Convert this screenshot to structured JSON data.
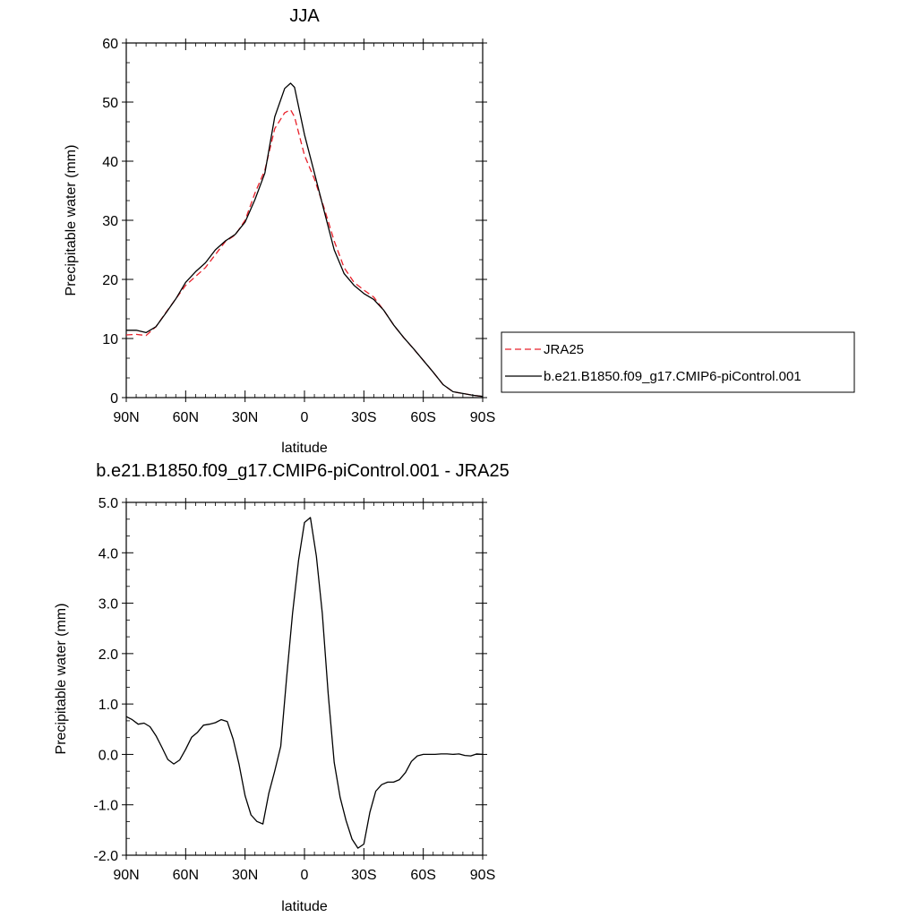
{
  "chart_data": [
    {
      "type": "line",
      "title": "JJA",
      "xlabel": "latitude",
      "ylabel": "Precipitable water (mm)",
      "xlim": [
        90,
        -90
      ],
      "ylim": [
        0,
        60
      ],
      "xticks": [
        90,
        60,
        30,
        0,
        -30,
        -60,
        -90
      ],
      "xtick_labels": [
        "90N",
        "60N",
        "30N",
        "0",
        "30S",
        "60S",
        "90S"
      ],
      "yticks": [
        0,
        10,
        20,
        30,
        40,
        50,
        60
      ],
      "ytick_labels": [
        "0",
        "10",
        "20",
        "30",
        "40",
        "50",
        "60"
      ],
      "legend": "outside-right",
      "series": [
        {
          "name": "JRA25",
          "color": "#e8202a",
          "dash": "dashed",
          "x": [
            90,
            85,
            80,
            75,
            70,
            65,
            60,
            55,
            50,
            45,
            40,
            35,
            30,
            25,
            20,
            15,
            10,
            7,
            5,
            0,
            -5,
            -10,
            -15,
            -20,
            -25,
            -30,
            -35,
            -40,
            -45,
            -50,
            -55,
            -60,
            -65,
            -70,
            -75,
            -80,
            -85,
            -90
          ],
          "y": [
            10.6,
            10.7,
            10.5,
            12.0,
            14.4,
            16.7,
            19.0,
            20.5,
            22.0,
            24.2,
            26.4,
            27.5,
            30.0,
            34.6,
            38.5,
            45.5,
            48.2,
            48.7,
            47.5,
            41.0,
            37.0,
            32.0,
            26.5,
            22.0,
            19.5,
            18.2,
            17.0,
            14.8,
            12.3,
            10.2,
            8.3,
            6.3,
            4.3,
            2.2,
            1.0,
            0.7,
            0.4,
            0.2
          ]
        },
        {
          "name": "b.e21.B1850.f09_g17.CMIP6-piControl.001",
          "color": "#000000",
          "dash": "solid",
          "x": [
            90,
            85,
            80,
            75,
            70,
            65,
            60,
            55,
            50,
            45,
            40,
            35,
            30,
            25,
            20,
            15,
            10,
            7,
            5,
            0,
            -5,
            -10,
            -15,
            -20,
            -25,
            -30,
            -35,
            -40,
            -45,
            -50,
            -55,
            -60,
            -65,
            -70,
            -75,
            -80,
            -85,
            -90
          ],
          "y": [
            11.4,
            11.4,
            11.0,
            12.0,
            14.3,
            16.7,
            19.5,
            21.3,
            22.8,
            25.0,
            26.5,
            27.6,
            29.7,
            33.5,
            38.0,
            47.5,
            52.3,
            53.2,
            52.5,
            44.5,
            38.0,
            31.5,
            25.0,
            21.0,
            19.0,
            17.6,
            16.6,
            14.8,
            12.3,
            10.2,
            8.3,
            6.3,
            4.3,
            2.2,
            1.0,
            0.7,
            0.4,
            0.2
          ]
        }
      ]
    },
    {
      "type": "line",
      "title": "b.e21.B1850.f09_g17.CMIP6-piControl.001 - JRA25",
      "xlabel": "latitude",
      "ylabel": "Precipitable water (mm)",
      "xlim": [
        90,
        -90
      ],
      "ylim": [
        -2,
        5
      ],
      "xticks": [
        90,
        60,
        30,
        0,
        -30,
        -60,
        -90
      ],
      "xtick_labels": [
        "90N",
        "60N",
        "30N",
        "0",
        "30S",
        "60S",
        "90S"
      ],
      "yticks": [
        -2,
        -1,
        0,
        1,
        2,
        3,
        4,
        5
      ],
      "ytick_labels": [
        "-2.0",
        "-1.0",
        "0.0",
        "1.0",
        "2.0",
        "3.0",
        "4.0",
        "5.0"
      ],
      "series": [
        {
          "color": "#000000",
          "dash": "solid",
          "x": [
            90,
            87,
            84,
            81,
            78,
            75,
            72,
            69,
            66,
            63,
            60,
            57,
            54,
            51,
            48,
            45,
            42,
            39,
            36,
            33,
            30,
            27,
            24,
            21,
            18,
            15,
            12,
            9,
            6,
            3,
            0,
            -3,
            -6,
            -9,
            -12,
            -15,
            -18,
            -21,
            -24,
            -27,
            -30,
            -33,
            -36,
            -39,
            -42,
            -45,
            -48,
            -51,
            -54,
            -57,
            -60,
            -63,
            -66,
            -69,
            -72,
            -75,
            -78,
            -81,
            -84,
            -87,
            -90
          ],
          "y": [
            0.75,
            0.69,
            0.6,
            0.62,
            0.55,
            0.37,
            0.14,
            -0.1,
            -0.19,
            -0.11,
            0.1,
            0.34,
            0.44,
            0.58,
            0.6,
            0.63,
            0.69,
            0.65,
            0.3,
            -0.2,
            -0.82,
            -1.2,
            -1.33,
            -1.38,
            -0.77,
            -0.33,
            0.16,
            1.53,
            2.8,
            3.85,
            4.6,
            4.7,
            3.93,
            2.8,
            1.2,
            -0.16,
            -0.85,
            -1.31,
            -1.68,
            -1.86,
            -1.78,
            -1.15,
            -0.73,
            -0.6,
            -0.55,
            -0.55,
            -0.5,
            -0.36,
            -0.14,
            -0.03,
            0.0,
            0.0,
            0.0,
            0.01,
            0.01,
            0.0,
            0.01,
            -0.02,
            -0.03,
            0.01,
            0.0
          ]
        }
      ]
    }
  ]
}
